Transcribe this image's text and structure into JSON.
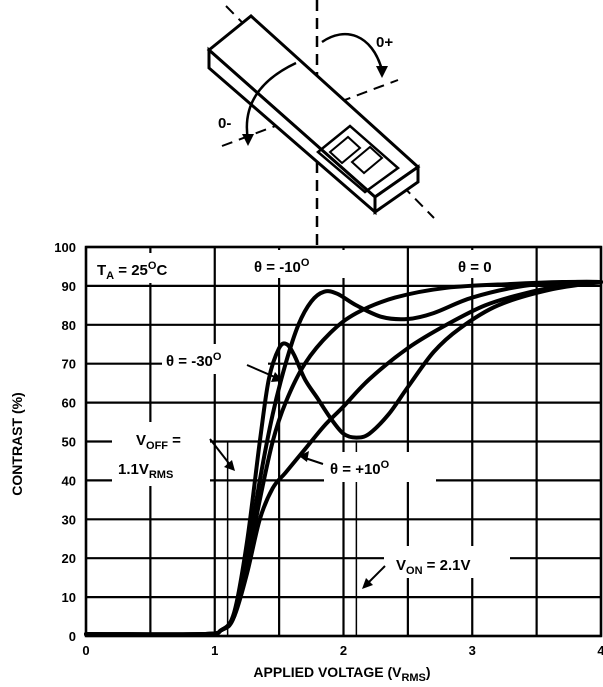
{
  "diagram": {
    "plus_label": "0+",
    "minus_label": "0-"
  },
  "chart_data": {
    "type": "line",
    "xlabel": "APPLIED VOLTAGE (V",
    "xlabel_sub": "RMS",
    "xlabel_end": ")",
    "ylabel": "CONTRAST (%)",
    "xlim": [
      0,
      4
    ],
    "ylim": [
      0,
      100
    ],
    "xticks": [
      "0",
      "1",
      "2",
      "3",
      "4"
    ],
    "yticks": [
      "0",
      "10",
      "20",
      "30",
      "40",
      "50",
      "60",
      "70",
      "80",
      "90",
      "100"
    ],
    "grid": true,
    "annotations": {
      "ta": {
        "main": "T",
        "sub": "A",
        "rest": " = 25",
        "sup": "O",
        "end": "C"
      },
      "theta_m10": {
        "main": "θ = -10",
        "sup": "O"
      },
      "theta_0": {
        "main": "θ = 0"
      },
      "theta_m30": {
        "main": "θ = -30",
        "sup": "O"
      },
      "theta_p10": {
        "main": "θ = +10",
        "sup": "O"
      },
      "voff_1": {
        "main": "V",
        "sub": "OFF",
        "end": " ="
      },
      "voff_2": {
        "main": "1.1V",
        "sub": "RMS"
      },
      "von": {
        "main": "V",
        "sub": "ON",
        "end": " = 2.1V"
      }
    },
    "series": [
      {
        "id": "theta_0",
        "x": [
          0,
          0.9,
          1.05,
          1.15,
          1.25,
          1.35,
          1.45,
          1.55,
          1.7,
          1.9,
          2.1,
          2.4,
          2.8,
          3.3,
          3.7,
          4.0
        ],
        "y": [
          0.5,
          0.5,
          1.5,
          5,
          18,
          35,
          50,
          60,
          70,
          78,
          83,
          87,
          89.5,
          90.5,
          91,
          91
        ]
      },
      {
        "id": "theta_m10",
        "x": [
          0,
          0.9,
          1.05,
          1.15,
          1.25,
          1.35,
          1.45,
          1.55,
          1.65,
          1.75,
          1.85,
          1.95,
          2.1,
          2.3,
          2.5,
          2.7,
          3.0,
          3.4,
          3.8,
          4.0
        ],
        "y": [
          0.5,
          0.5,
          1.5,
          5,
          20,
          40,
          57,
          70,
          80,
          86,
          88.5,
          88,
          85,
          82,
          81.5,
          83,
          87,
          90,
          91,
          91
        ]
      },
      {
        "id": "theta_m30",
        "x": [
          0,
          0.9,
          1.05,
          1.15,
          1.25,
          1.35,
          1.42,
          1.5,
          1.56,
          1.62,
          1.7,
          1.8,
          1.9,
          2.0,
          2.1,
          2.2,
          2.35,
          2.5,
          2.7,
          2.9,
          3.2,
          3.6,
          4.0
        ],
        "y": [
          0.5,
          0.5,
          1.5,
          6,
          24,
          50,
          66,
          74,
          75,
          72,
          66,
          61,
          56,
          52,
          51,
          52,
          57,
          64,
          73,
          79,
          85,
          89,
          91
        ]
      },
      {
        "id": "theta_p10",
        "x": [
          0,
          0.9,
          1.05,
          1.15,
          1.25,
          1.35,
          1.45,
          1.55,
          1.7,
          1.85,
          2.0,
          2.2,
          2.5,
          2.8,
          3.1,
          3.4,
          3.7,
          4.0
        ],
        "y": [
          0.5,
          0.5,
          1.5,
          5,
          16,
          30,
          38,
          42,
          48,
          54,
          59,
          66,
          74,
          80,
          85,
          88,
          90,
          91
        ]
      }
    ],
    "markers": {
      "v_off": 1.1,
      "v_on": 2.1
    }
  }
}
